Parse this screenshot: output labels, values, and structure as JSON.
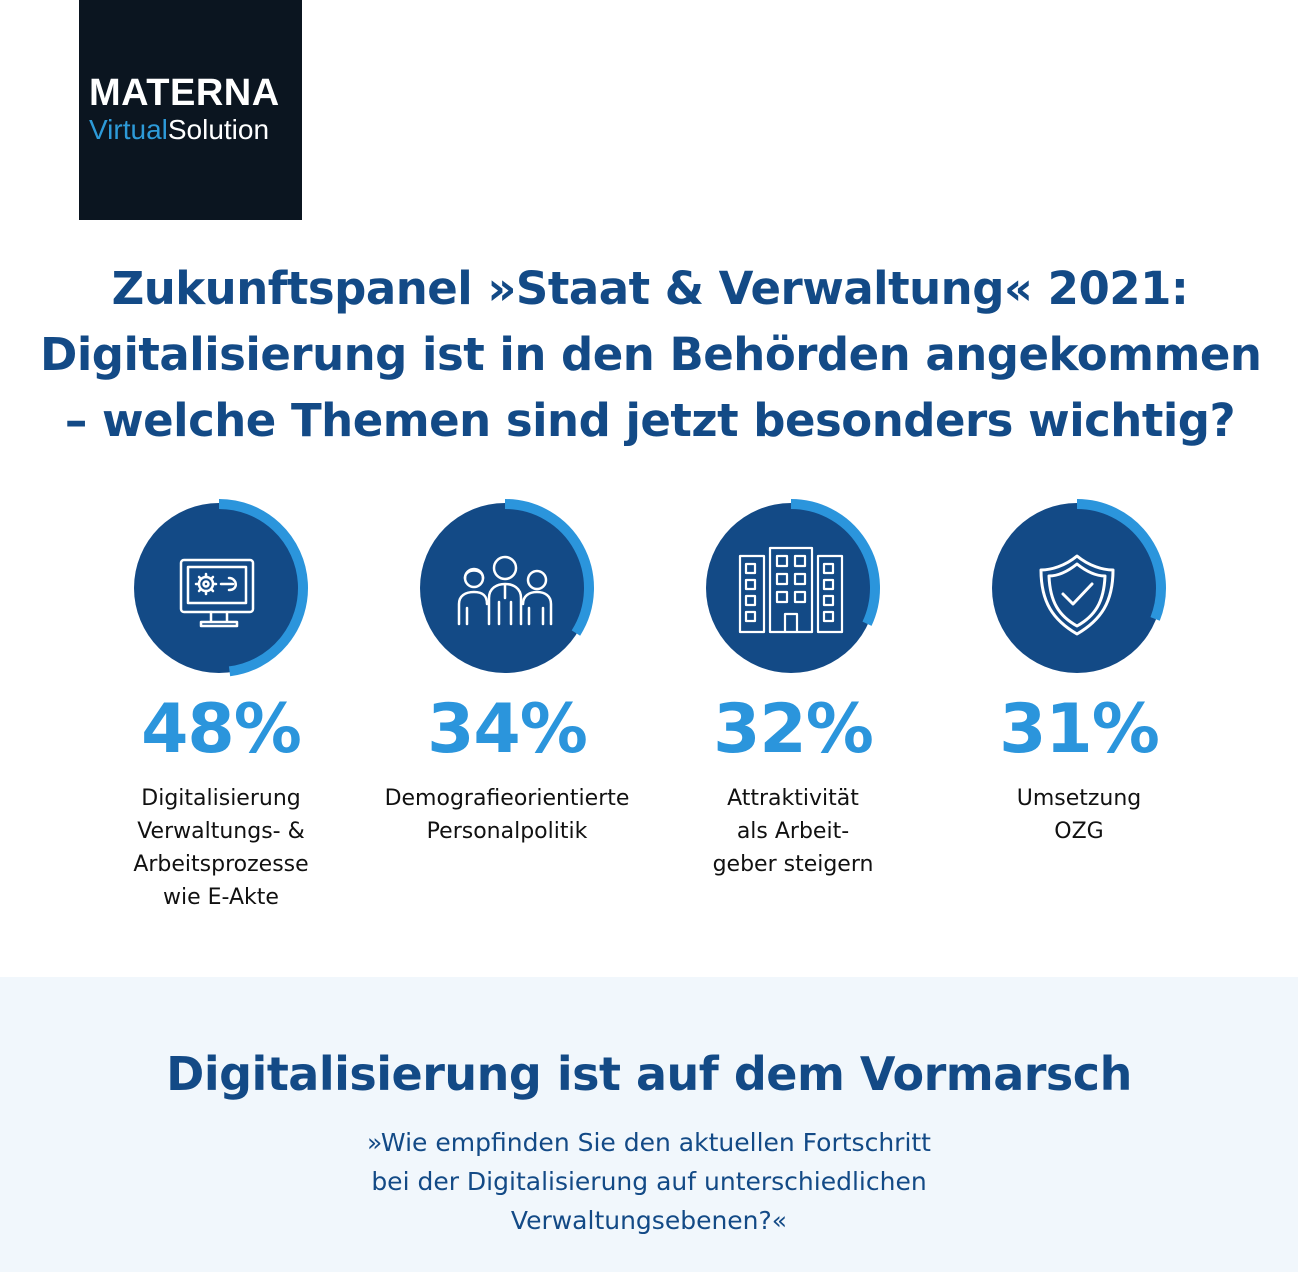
{
  "logo": {
    "brand": "MATERNA",
    "sub_accent": "Virtual",
    "sub_rest": "Solution"
  },
  "headline": {
    "line1": "Zukunftspanel »Staat & Verwaltung« 2021:",
    "line2": "Digitalisierung ist in den Behörden angekommen",
    "line3": "– welche Themen sind jetzt besonders wichtig?"
  },
  "stats": [
    {
      "value": 48,
      "label": "48%",
      "lines": [
        "Digitalisierung",
        "Verwaltungs- &",
        "Arbeitsprozesse",
        "wie E-Akte"
      ],
      "icon": "monitor-gear-icon"
    },
    {
      "value": 34,
      "label": "34%",
      "lines": [
        "Demografieorientierte",
        "Personalpolitik"
      ],
      "icon": "people-group-icon"
    },
    {
      "value": 32,
      "label": "32%",
      "lines": [
        "Attraktivität",
        "als Arbeit-",
        "geber steigern"
      ],
      "icon": "office-building-icon"
    },
    {
      "value": 31,
      "label": "31%",
      "lines": [
        "Umsetzung",
        "OZG"
      ],
      "icon": "shield-check-icon"
    }
  ],
  "colors": {
    "dark_blue": "#134a86",
    "accent_blue": "#2b95dc",
    "circle_fill": "#134a86",
    "panel_bg": "#f1f7fc",
    "logo_bg": "#0b1520"
  },
  "section": {
    "title": "Digitalisierung ist auf dem Vormarsch",
    "question_lines": [
      "»Wie empfinden Sie den aktuellen Fortschritt",
      "bei der Digitalisierung auf unterschiedlichen",
      "Verwaltungsebenen?«"
    ]
  }
}
